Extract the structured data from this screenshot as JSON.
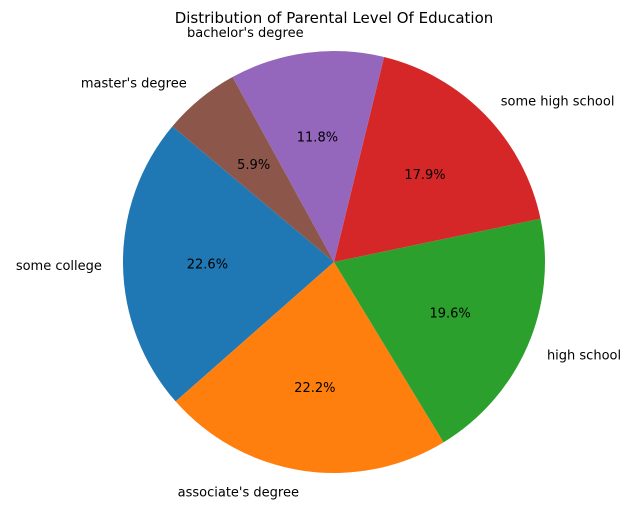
{
  "chart_data": {
    "type": "pie",
    "title": "Distribution of Parental Level Of Education",
    "start_angle_deg": 140,
    "direction": "counterclockwise",
    "slices": [
      {
        "label": "some college",
        "value": 22.6,
        "pct_label": "22.6%",
        "color": "#1f77b4"
      },
      {
        "label": "associate's degree",
        "value": 22.2,
        "pct_label": "22.2%",
        "color": "#ff7f0e"
      },
      {
        "label": "high school",
        "value": 19.6,
        "pct_label": "19.6%",
        "color": "#2ca02c"
      },
      {
        "label": "some high school",
        "value": 17.9,
        "pct_label": "17.9%",
        "color": "#d62728"
      },
      {
        "label": "bachelor's degree",
        "value": 11.8,
        "pct_label": "11.8%",
        "color": "#9467bd"
      },
      {
        "label": "master's degree",
        "value": 5.9,
        "pct_label": "5.9%",
        "color": "#8c564b"
      }
    ]
  }
}
